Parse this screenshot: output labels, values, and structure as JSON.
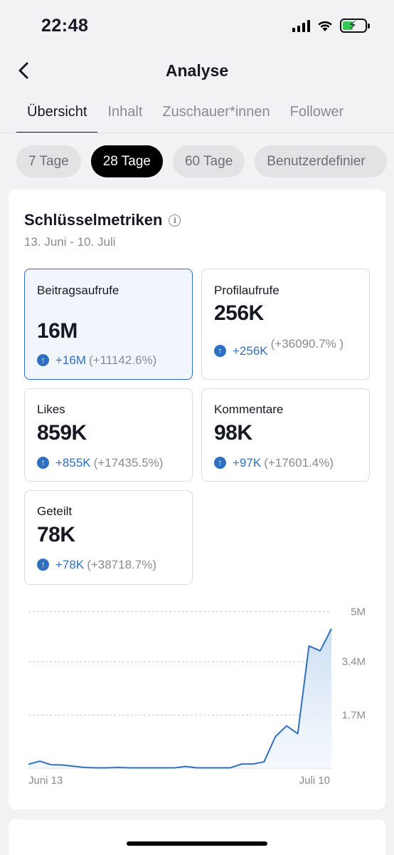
{
  "status_bar": {
    "time": "22:48",
    "signal_icon": "cellular-signal-icon",
    "wifi_icon": "wifi-icon",
    "battery_icon": "battery-charging-icon"
  },
  "header": {
    "back_icon": "chevron-left-icon",
    "title": "Analyse"
  },
  "tabs": [
    {
      "label": "Übersicht",
      "active": true
    },
    {
      "label": "Inhalt",
      "active": false
    },
    {
      "label": "Zuschauer*innen",
      "active": false
    },
    {
      "label": "Follower",
      "active": false
    }
  ],
  "ranges": [
    {
      "label": "7 Tage",
      "active": false
    },
    {
      "label": "28 Tage",
      "active": true
    },
    {
      "label": "60 Tage",
      "active": false
    },
    {
      "label": "Benutzerdefinier",
      "active": false
    }
  ],
  "key_metrics": {
    "title": "Schlüsselmetriken",
    "info_icon": "info-icon",
    "date_range": "13. Juni - 10. Juli",
    "items": [
      {
        "label": "Beitragsaufrufe",
        "value": "16M",
        "delta": "+16M",
        "percent": "(+11142.6%)",
        "selected": true
      },
      {
        "label": "Profilaufrufe",
        "value": "256K",
        "delta": "+256K",
        "percent": "(+36090.7% )",
        "selected": false
      },
      {
        "label": "Likes",
        "value": "859K",
        "delta": "+855K",
        "percent": "(+17435.5%)",
        "selected": false
      },
      {
        "label": "Kommentare",
        "value": "98K",
        "delta": "+97K",
        "percent": "(+17601.4%)",
        "selected": false
      },
      {
        "label": "Geteilt",
        "value": "78K",
        "delta": "+78K",
        "percent": "(+38718.7%)",
        "selected": false
      }
    ],
    "up_icon": "arrow-up-circle-icon"
  },
  "colors": {
    "accent": "#2f6fbf",
    "selected_bg": "#f1f6fc",
    "area_fill": "#dce8f6"
  },
  "chart_data": {
    "type": "area",
    "x_tick_labels": [
      "Juni 13",
      "Juli 10"
    ],
    "y_tick_labels": [
      "5M",
      "3.4M",
      "1.7M"
    ],
    "ylim": [
      0,
      5100000
    ],
    "grid": true,
    "values": [
      120000,
      220000,
      110000,
      100000,
      60000,
      20000,
      10000,
      10000,
      20000,
      10000,
      10000,
      10000,
      10000,
      10000,
      50000,
      10000,
      10000,
      10000,
      10000,
      130000,
      130000,
      200000,
      1000000,
      1350000,
      1100000,
      3900000,
      3750000,
      4450000
    ]
  }
}
